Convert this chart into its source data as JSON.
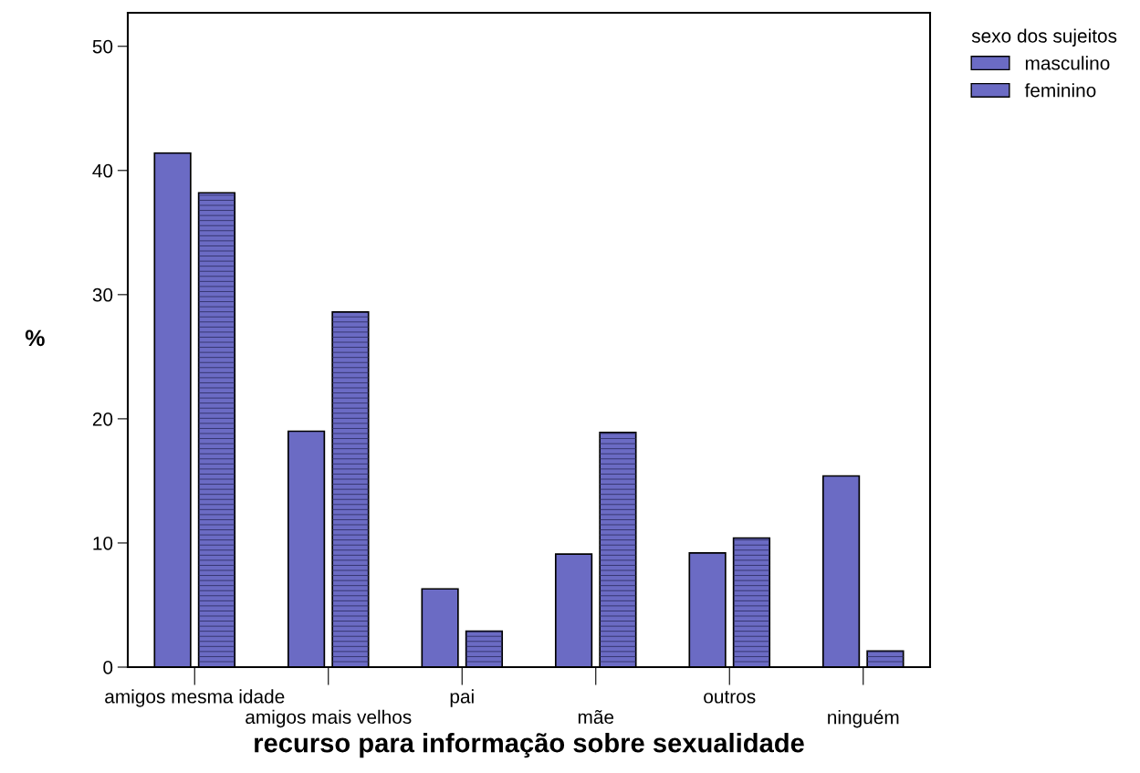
{
  "chart_data": {
    "type": "bar",
    "xlabel": "recurso para informação sobre sexualidade",
    "ylabel": "%",
    "legend_title": "sexo dos sujeitos",
    "categories": [
      "amigos mesma idade",
      "amigos mais velhos",
      "pai",
      "mãe",
      "outros",
      "ninguém"
    ],
    "series": [
      {
        "name": "masculino",
        "color": "#6b6bc4",
        "values": [
          41.4,
          19.0,
          6.3,
          9.1,
          9.2,
          15.4
        ]
      },
      {
        "name": "feminino",
        "color": "#6b6bc4",
        "values": [
          38.2,
          28.6,
          2.9,
          18.9,
          10.4,
          1.3
        ]
      }
    ],
    "ylim": [
      0,
      52.7
    ],
    "yticks": [
      0,
      10,
      20,
      30,
      40,
      50
    ],
    "grid": false,
    "legend": "top right"
  }
}
